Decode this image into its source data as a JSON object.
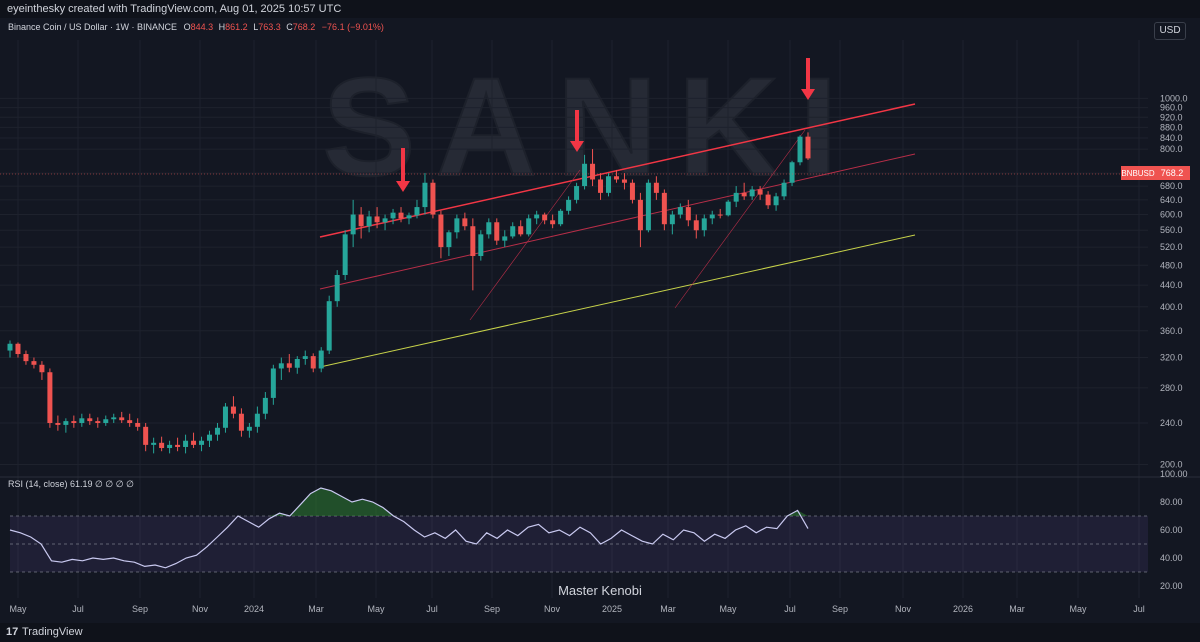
{
  "header": {
    "credit": "eyeinthesky created with TradingView.com, Aug 01, 2025 10:57 UTC"
  },
  "legend": {
    "symbol": "Binance Coin / US Dollar · 1W · BINANCE",
    "o_label": "O",
    "o_value": "844.3",
    "h_label": "H",
    "h_value": "861.2",
    "l_label": "L",
    "l_value": "763.3",
    "c_label": "C",
    "c_value": "768.2",
    "change": "−76.1 (−9.01%)"
  },
  "currency_button": "USD",
  "watermark": "SANKI",
  "price_tag": {
    "symbol": "BNBUSD",
    "value": "768.2"
  },
  "rsi_legend": "RSI (14, close)  61.19  ∅  ∅  ∅  ∅",
  "signature": "Master Kenobi",
  "footer": {
    "brand": "TradingView",
    "logo": "17"
  },
  "colors": {
    "background": "#131722",
    "up": "#26a69a",
    "down": "#ef5350",
    "channel_upper": "#f23645",
    "channel_mid": "#b72e48",
    "channel_lower": "#c8d34a",
    "arrow": "#f23645",
    "rsi_line": "#c9c9f0",
    "rsi_band": "#7e57c2"
  },
  "chart_data": {
    "type": "candlestick",
    "price_axis": {
      "ticks": [
        1000,
        960,
        920,
        880,
        840,
        800,
        720,
        680,
        640,
        600,
        560,
        520,
        480,
        440,
        400,
        360,
        320,
        280,
        240,
        200
      ],
      "scale": "log"
    },
    "time_axis": [
      "May",
      "Jul",
      "Sep",
      "Nov",
      "2024",
      "Mar",
      "May",
      "Jul",
      "Sep",
      "Nov",
      "2025",
      "Mar",
      "May",
      "Jul",
      "Sep",
      "Nov",
      "2026",
      "Mar",
      "May",
      "Jul"
    ],
    "candles_approx": [
      [
        330,
        345,
        320,
        340
      ],
      [
        340,
        342,
        320,
        325
      ],
      [
        325,
        330,
        310,
        315
      ],
      [
        315,
        320,
        305,
        310
      ],
      [
        310,
        315,
        290,
        300
      ],
      [
        300,
        305,
        235,
        240
      ],
      [
        240,
        248,
        232,
        238
      ],
      [
        238,
        245,
        230,
        242
      ],
      [
        242,
        248,
        235,
        240
      ],
      [
        240,
        250,
        236,
        245
      ],
      [
        245,
        250,
        238,
        242
      ],
      [
        242,
        246,
        235,
        240
      ],
      [
        240,
        248,
        237,
        244
      ],
      [
        244,
        250,
        240,
        246
      ],
      [
        246,
        252,
        240,
        243
      ],
      [
        243,
        250,
        236,
        240
      ],
      [
        240,
        245,
        232,
        236
      ],
      [
        236,
        240,
        212,
        218
      ],
      [
        218,
        225,
        210,
        220
      ],
      [
        220,
        226,
        212,
        215
      ],
      [
        215,
        222,
        210,
        218
      ],
      [
        218,
        225,
        212,
        216
      ],
      [
        216,
        228,
        210,
        222
      ],
      [
        222,
        230,
        215,
        218
      ],
      [
        218,
        226,
        212,
        222
      ],
      [
        222,
        232,
        216,
        228
      ],
      [
        228,
        240,
        222,
        235
      ],
      [
        235,
        262,
        230,
        258
      ],
      [
        258,
        270,
        245,
        250
      ],
      [
        250,
        256,
        226,
        232
      ],
      [
        232,
        240,
        225,
        236
      ],
      [
        236,
        258,
        230,
        250
      ],
      [
        250,
        275,
        244,
        268
      ],
      [
        268,
        310,
        260,
        305
      ],
      [
        305,
        320,
        290,
        312
      ],
      [
        312,
        325,
        300,
        306
      ],
      [
        306,
        322,
        298,
        318
      ],
      [
        318,
        330,
        310,
        322
      ],
      [
        322,
        326,
        300,
        305
      ],
      [
        305,
        335,
        300,
        330
      ],
      [
        330,
        420,
        325,
        410
      ],
      [
        410,
        470,
        400,
        460
      ],
      [
        460,
        560,
        450,
        550
      ],
      [
        550,
        640,
        520,
        600
      ],
      [
        600,
        620,
        540,
        570
      ],
      [
        570,
        610,
        555,
        595
      ],
      [
        595,
        620,
        565,
        580
      ],
      [
        580,
        600,
        560,
        590
      ],
      [
        590,
        615,
        575,
        605
      ],
      [
        605,
        620,
        580,
        590
      ],
      [
        590,
        605,
        575,
        598
      ],
      [
        598,
        640,
        590,
        620
      ],
      [
        620,
        720,
        600,
        690
      ],
      [
        690,
        700,
        590,
        600
      ],
      [
        600,
        610,
        495,
        520
      ],
      [
        520,
        560,
        500,
        555
      ],
      [
        555,
        600,
        540,
        590
      ],
      [
        590,
        605,
        560,
        570
      ],
      [
        570,
        590,
        430,
        500
      ],
      [
        500,
        560,
        490,
        550
      ],
      [
        550,
        590,
        540,
        580
      ],
      [
        580,
        590,
        525,
        535
      ],
      [
        535,
        560,
        520,
        545
      ],
      [
        545,
        580,
        540,
        570
      ],
      [
        570,
        585,
        545,
        550
      ],
      [
        550,
        600,
        545,
        590
      ],
      [
        590,
        610,
        575,
        600
      ],
      [
        600,
        605,
        575,
        585
      ],
      [
        585,
        600,
        565,
        575
      ],
      [
        575,
        615,
        570,
        610
      ],
      [
        610,
        650,
        600,
        640
      ],
      [
        640,
        690,
        630,
        680
      ],
      [
        680,
        780,
        670,
        750
      ],
      [
        750,
        800,
        680,
        700
      ],
      [
        700,
        720,
        640,
        660
      ],
      [
        660,
        720,
        650,
        710
      ],
      [
        710,
        730,
        690,
        700
      ],
      [
        700,
        720,
        670,
        690
      ],
      [
        690,
        700,
        630,
        640
      ],
      [
        640,
        660,
        520,
        560
      ],
      [
        560,
        700,
        555,
        690
      ],
      [
        690,
        710,
        640,
        660
      ],
      [
        660,
        670,
        560,
        575
      ],
      [
        575,
        610,
        550,
        600
      ],
      [
        600,
        630,
        590,
        620
      ],
      [
        620,
        640,
        570,
        585
      ],
      [
        585,
        600,
        540,
        560
      ],
      [
        560,
        600,
        545,
        590
      ],
      [
        590,
        610,
        575,
        600
      ],
      [
        600,
        615,
        590,
        598
      ],
      [
        598,
        640,
        595,
        635
      ],
      [
        635,
        680,
        620,
        660
      ],
      [
        660,
        690,
        640,
        650
      ],
      [
        650,
        680,
        640,
        670
      ],
      [
        670,
        680,
        640,
        655
      ],
      [
        655,
        665,
        615,
        625
      ],
      [
        625,
        660,
        610,
        650
      ],
      [
        650,
        700,
        640,
        690
      ],
      [
        690,
        760,
        680,
        755
      ],
      [
        755,
        850,
        745,
        845
      ],
      [
        845,
        861,
        763,
        768
      ]
    ],
    "channel": {
      "upper": [
        [
          2024.17,
          645
        ],
        [
          2025.6,
          900
        ]
      ],
      "middle": [
        [
          2024.17,
          540
        ],
        [
          2025.6,
          800
        ]
      ],
      "lower": [
        [
          2024.17,
          395
        ],
        [
          2025.6,
          650
        ]
      ]
    },
    "arrows_at_highs": [
      695,
      785,
      861
    ],
    "rsi": {
      "axis_ticks": [
        100,
        80,
        60,
        40,
        20
      ],
      "bands": [
        70,
        50,
        30
      ],
      "current": 61.19,
      "values": [
        60,
        58,
        55,
        50,
        38,
        37,
        39,
        38,
        40,
        39,
        40,
        38,
        37,
        34,
        35,
        33,
        36,
        40,
        42,
        48,
        55,
        62,
        70,
        66,
        62,
        68,
        72,
        70,
        78,
        86,
        90,
        88,
        84,
        80,
        82,
        80,
        76,
        70,
        66,
        60,
        55,
        58,
        54,
        60,
        52,
        50,
        58,
        54,
        60,
        56,
        62,
        64,
        58,
        60,
        56,
        62,
        58,
        50,
        54,
        60,
        56,
        52,
        50,
        57,
        53,
        60,
        58,
        52,
        57,
        54,
        60,
        63,
        58,
        62,
        61,
        70,
        74,
        61
      ]
    }
  }
}
